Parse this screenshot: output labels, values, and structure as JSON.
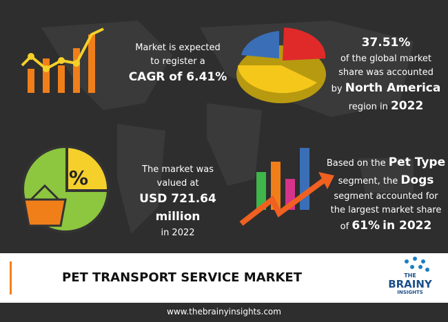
{
  "blocks": [
    {
      "lines": [
        [
          "Market is expected"
        ],
        [
          "to register a"
        ],
        [
          {
            "strong": "CAGR of 6.41%"
          }
        ]
      ]
    },
    {
      "lines": [
        [
          {
            "strong": "37.51%"
          }
        ],
        [
          "of the global market"
        ],
        [
          "share was accounted"
        ],
        [
          "by ",
          {
            "strong": "North America"
          }
        ],
        [
          "region in ",
          {
            "strong": "2022"
          }
        ]
      ]
    },
    {
      "lines": [
        [
          "The market was"
        ],
        [
          "valued at"
        ],
        [
          {
            "strong": "USD 721.64 million"
          }
        ],
        [
          "in 2022"
        ]
      ]
    },
    {
      "lines": [
        [
          "Based on the ",
          {
            "strong": "Pet Type"
          }
        ],
        [
          "segment, the ",
          {
            "strong": "Dogs"
          }
        ],
        [
          "segment accounted for"
        ],
        [
          "the largest market share"
        ],
        [
          "of ",
          {
            "strong": "61%"
          },
          " ",
          {
            "strong": "in 2022"
          }
        ]
      ]
    }
  ],
  "percent_icon": "%",
  "title": "PET TRANSPORT SERVICE MARKET",
  "logo": [
    "THE",
    "BRAINY",
    "INSIGHTS"
  ],
  "url": "www.thebrainyinsights.com"
}
